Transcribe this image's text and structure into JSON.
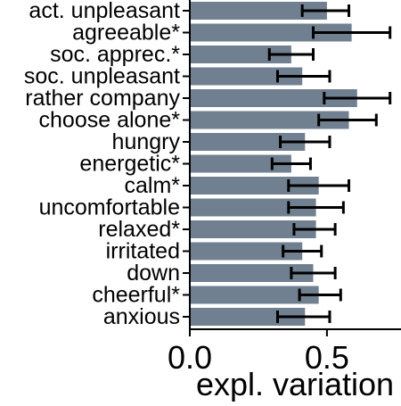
{
  "colors": {
    "bar": "#708090",
    "error_bar": "#000000",
    "axis": "#000000",
    "background": "#ffffff"
  },
  "chart_data": {
    "type": "bar",
    "orientation": "horizontal",
    "categories": [
      "act. unpleasant",
      "agreeable*",
      "soc. apprec.*",
      "soc. unpleasant",
      "rather company",
      "choose alone*",
      "hungry",
      "energetic*",
      "calm*",
      "uncomfortable",
      "relaxed*",
      "irritated",
      "down",
      "cheerful*",
      "anxious"
    ],
    "values": [
      0.5,
      0.59,
      0.37,
      0.41,
      0.61,
      0.58,
      0.42,
      0.37,
      0.47,
      0.46,
      0.46,
      0.41,
      0.45,
      0.47,
      0.42
    ],
    "error_low": [
      0.41,
      0.45,
      0.29,
      0.32,
      0.49,
      0.47,
      0.33,
      0.3,
      0.36,
      0.36,
      0.38,
      0.34,
      0.37,
      0.4,
      0.32
    ],
    "error_high": [
      0.58,
      0.73,
      0.45,
      0.51,
      0.73,
      0.68,
      0.51,
      0.44,
      0.58,
      0.56,
      0.53,
      0.48,
      0.53,
      0.55,
      0.51
    ],
    "xlabel": "expl. variation",
    "ylabel": "",
    "title": "",
    "xlim": [
      0,
      0.77
    ],
    "xticks": [
      0.0,
      0.5
    ],
    "xtick_labels": [
      "0.0",
      "0.5"
    ],
    "grid": false,
    "legend": "none"
  }
}
